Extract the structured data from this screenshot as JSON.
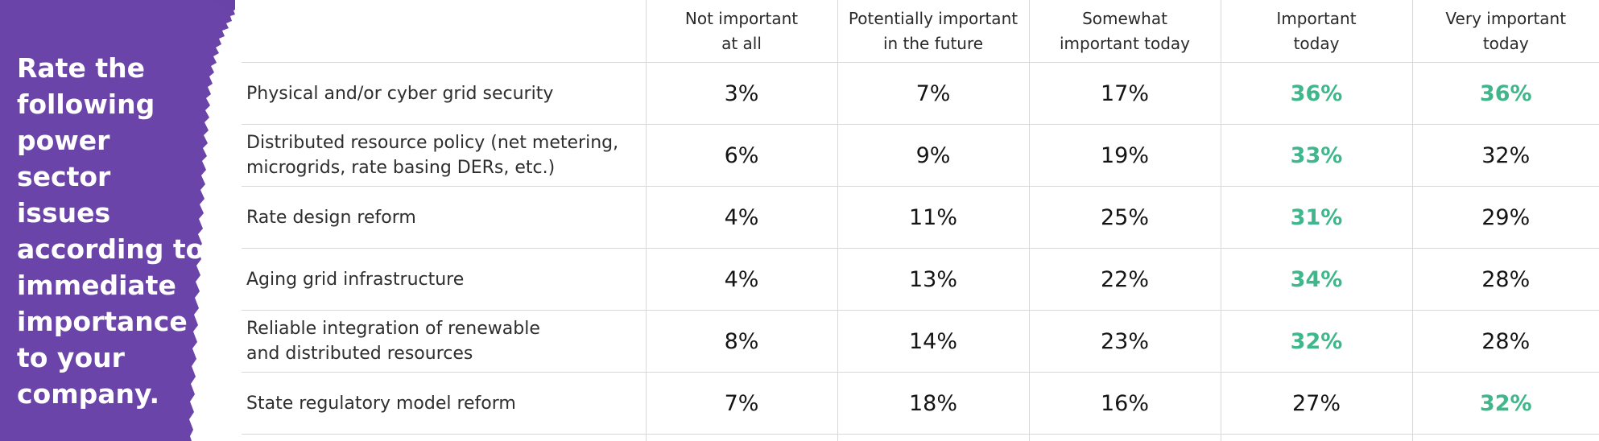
{
  "side": {
    "title": "Rate the following power sector issues according to immediate importance to your company.",
    "panel_color": "#6a44a8",
    "text_color": "#ffffff"
  },
  "chart_data": {
    "type": "table",
    "columns": [
      "Not important\nat all",
      "Potentially important\nin the future",
      "Somewhat\nimportant today",
      "Important\ntoday",
      "Very important\ntoday"
    ],
    "rows": [
      {
        "label": "Physical and/or cyber grid security",
        "values": [
          "3%",
          "7%",
          "17%",
          "36%",
          "36%"
        ],
        "highlight": [
          false,
          false,
          false,
          true,
          true
        ]
      },
      {
        "label": "Distributed resource policy (net metering,\nmicrogrids, rate basing DERs, etc.)",
        "values": [
          "6%",
          "9%",
          "19%",
          "33%",
          "32%"
        ],
        "highlight": [
          false,
          false,
          false,
          true,
          false
        ]
      },
      {
        "label": "Rate design reform",
        "values": [
          "4%",
          "11%",
          "25%",
          "31%",
          "29%"
        ],
        "highlight": [
          false,
          false,
          false,
          true,
          false
        ]
      },
      {
        "label": "Aging grid infrastructure",
        "values": [
          "4%",
          "13%",
          "22%",
          "34%",
          "28%"
        ],
        "highlight": [
          false,
          false,
          false,
          true,
          false
        ]
      },
      {
        "label": "Reliable integration of renewable\nand distributed resources",
        "values": [
          "8%",
          "14%",
          "23%",
          "32%",
          "28%"
        ],
        "highlight": [
          false,
          false,
          false,
          true,
          false
        ]
      },
      {
        "label": "State regulatory model reform",
        "values": [
          "7%",
          "18%",
          "16%",
          "27%",
          "32%"
        ],
        "highlight": [
          false,
          false,
          false,
          false,
          true
        ]
      }
    ],
    "highlight_color": "#3fb68b",
    "value_color": "#141414"
  }
}
